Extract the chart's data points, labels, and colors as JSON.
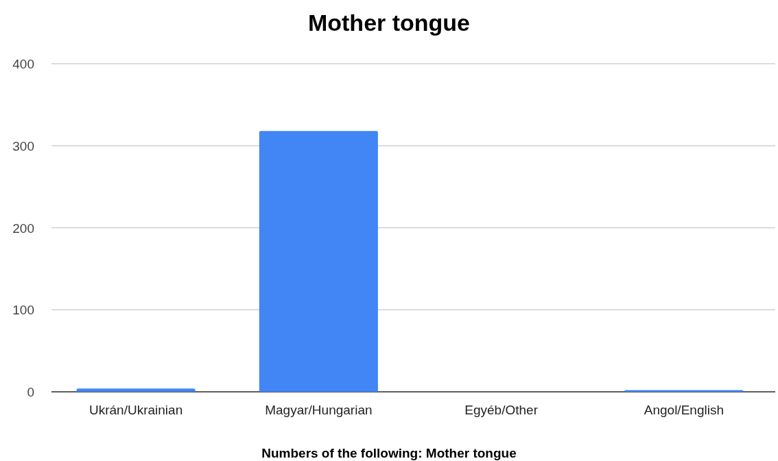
{
  "chart_data": {
    "type": "bar",
    "title": "Mother tongue",
    "xlabel": "Numbers of the following: Mother tongue",
    "categories": [
      "Ukrán/Ukrainian",
      "Magyar/Hungarian",
      "Egyéb/Other",
      "Angol/English"
    ],
    "values": [
      4,
      318,
      0,
      2
    ],
    "color": "#4285f4",
    "ylim": [
      0,
      400
    ],
    "yticks": [
      0,
      100,
      200,
      300,
      400
    ],
    "grid": "y"
  }
}
